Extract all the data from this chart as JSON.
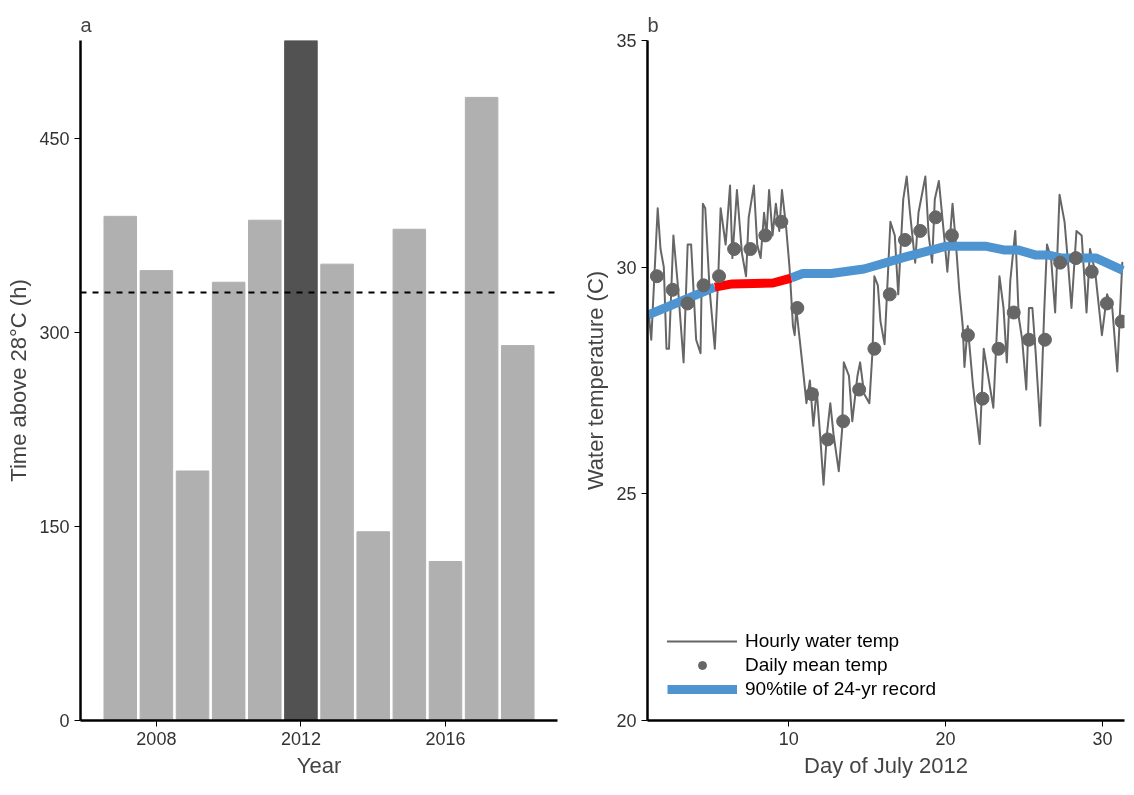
{
  "chart_data": [
    {
      "type": "bar",
      "title": "a",
      "xlabel": "Year",
      "ylabel": "Time above 28°C (h)",
      "x": [
        2007,
        2008,
        2009,
        2010,
        2011,
        2012,
        2013,
        2014,
        2015,
        2016,
        2017,
        2018
      ],
      "values": [
        390,
        348,
        193,
        339,
        387,
        526,
        353,
        146,
        380,
        123,
        482,
        290
      ],
      "colors": [
        "#b0b0b0",
        "#b0b0b0",
        "#b0b0b0",
        "#b0b0b0",
        "#b0b0b0",
        "#525252",
        "#b0b0b0",
        "#b0b0b0",
        "#b0b0b0",
        "#b0b0b0",
        "#b0b0b0",
        "#b0b0b0"
      ],
      "xlim": [
        2005.9,
        2019.1
      ],
      "xticks": [
        2008,
        2012,
        2016
      ],
      "ylim": [
        0,
        526
      ],
      "yticks": [
        0,
        150,
        300,
        450
      ],
      "ref_lines": [
        {
          "axis": "y",
          "value": 331,
          "label": null,
          "color": "#000000",
          "line_style": "dashed"
        }
      ],
      "grid": false
    },
    {
      "type": "line",
      "title": "b",
      "xlabel": "Day of July 2012",
      "ylabel": "Water temperature (C)",
      "xlim": [
        1,
        31.4
      ],
      "xticks": [
        10,
        20,
        30
      ],
      "ylim": [
        20,
        35
      ],
      "yticks": [
        20,
        25,
        30,
        35
      ],
      "grid": false,
      "legend": "bottom left",
      "series": [
        {
          "name": "Hourly water temp",
          "type": "line",
          "color": "#666666",
          "x": [
            1.07,
            1.24,
            1.65,
            1.83,
            2.04,
            2.21,
            2.37,
            2.65,
            2.91,
            3.3,
            3.56,
            3.78,
            4.1,
            4.38,
            4.53,
            4.68,
            4.96,
            5.29,
            5.51,
            5.66,
            5.98,
            6.26,
            6.41,
            6.7,
            7.02,
            7.28,
            7.45,
            7.78,
            7.99,
            8.21,
            8.43,
            8.58,
            8.75,
            8.97,
            9.18,
            9.4,
            9.57,
            9.83,
            10.05,
            10.27,
            10.38,
            10.48,
            10.7,
            10.92,
            11.13,
            11.35,
            11.57,
            11.78,
            12.0,
            12.22,
            12.43,
            12.65,
            12.86,
            13.19,
            13.4,
            13.51,
            13.84,
            14.05,
            14.38,
            14.55,
            14.81,
            15.14,
            15.35,
            15.46,
            15.68,
            15.85,
            16.11,
            16.48,
            16.76,
            16.98,
            17.3,
            17.52,
            17.73,
            18.06,
            18.27,
            18.71,
            18.92,
            19.14,
            19.31,
            19.57,
            19.9,
            20.11,
            20.44,
            20.66,
            20.87,
            21.09,
            21.2,
            21.41,
            21.74,
            22.17,
            22.43,
            22.71,
            23.04,
            23.43,
            23.69,
            23.9,
            24.12,
            24.44,
            24.66,
            24.88,
            25.14,
            25.31,
            25.53,
            25.74,
            26.03,
            26.28,
            26.46,
            26.72,
            26.98,
            27.26,
            27.58,
            27.8,
            28.02,
            28.34,
            28.67,
            28.98,
            29.2,
            29.53,
            29.96,
            30.29,
            30.62,
            30.94,
            31.26
          ],
          "values": [
            29.0,
            28.4,
            31.3,
            30.4,
            30.0,
            28.2,
            28.2,
            30.7,
            29.7,
            27.9,
            30.5,
            30.5,
            28.4,
            28.1,
            31.4,
            31.3,
            29.5,
            28.2,
            29.8,
            31.3,
            30.5,
            31.8,
            30.2,
            31.7,
            30.3,
            29.8,
            31.1,
            31.8,
            30.5,
            30.2,
            31.2,
            30.7,
            31.7,
            30.7,
            31.4,
            30.8,
            31.7,
            30.9,
            30.0,
            28.7,
            28.5,
            29.1,
            28.4,
            27.7,
            27.0,
            27.5,
            26.5,
            27.3,
            26.3,
            25.2,
            26.3,
            27.0,
            26.3,
            25.5,
            26.4,
            27.9,
            27.6,
            26.6,
            27.6,
            27.9,
            27.2,
            27.0,
            28.2,
            29.8,
            29.6,
            28.8,
            28.3,
            31.0,
            30.7,
            29.4,
            31.5,
            32.0,
            31.2,
            30.1,
            31.2,
            32.0,
            30.7,
            30.1,
            31.5,
            31.9,
            30.7,
            29.9,
            31.4,
            30.5,
            29.5,
            28.7,
            27.8,
            28.7,
            27.4,
            26.1,
            28.2,
            27.6,
            26.9,
            29.8,
            29.1,
            27.9,
            29.7,
            30.8,
            28.9,
            28.4,
            27.3,
            29.1,
            29.1,
            28.1,
            26.5,
            29.0,
            30.5,
            30.2,
            29.0,
            31.6,
            31.0,
            30.1,
            29.1,
            30.8,
            30.7,
            29.0,
            30.4,
            29.9,
            28.5,
            29.4,
            29.1,
            27.7,
            30.1
          ]
        },
        {
          "name": "Daily mean temp",
          "type": "scatter",
          "marker": "circle",
          "color": "#666666",
          "x": [
            1.6,
            2.6,
            3.55,
            4.57,
            5.56,
            6.52,
            7.56,
            8.51,
            9.53,
            10.55,
            11.48,
            12.49,
            13.47,
            14.49,
            15.46,
            16.44,
            17.41,
            18.38,
            19.36,
            20.4,
            21.42,
            22.35,
            23.37,
            24.34,
            25.31,
            26.33,
            27.3,
            28.3,
            29.31,
            30.28,
            31.22
          ],
          "values": [
            29.8,
            29.5,
            29.2,
            29.6,
            29.8,
            30.4,
            30.4,
            30.7,
            31.0,
            29.1,
            27.2,
            26.2,
            26.6,
            27.3,
            28.2,
            29.4,
            30.6,
            30.8,
            31.1,
            30.7,
            28.5,
            27.1,
            28.2,
            29.0,
            28.4,
            28.4,
            30.1,
            30.2,
            29.9,
            29.2,
            28.8
          ]
        },
        {
          "name": "90%tile of 24-yr record",
          "type": "line",
          "color": "#4d94d1",
          "x": [
            1.05,
            5.29,
            7.5,
            10.15,
            10.9,
            12.7,
            14.8,
            17.4,
            20.0,
            22.6,
            23.7,
            24.6,
            25.7,
            26.5,
            27.4,
            29.6,
            31.3
          ],
          "values": [
            28.95,
            29.56,
            null,
            29.76,
            29.86,
            29.86,
            29.96,
            30.22,
            30.46,
            30.46,
            30.38,
            30.38,
            30.27,
            30.27,
            30.2,
            30.2,
            29.93
          ]
        },
        {
          "type": "line",
          "color": "#ff0000",
          "x": [
            5.29,
            6.4,
            9.0,
            10.15
          ],
          "values": [
            29.56,
            29.63,
            29.65,
            29.76
          ]
        }
      ]
    }
  ]
}
